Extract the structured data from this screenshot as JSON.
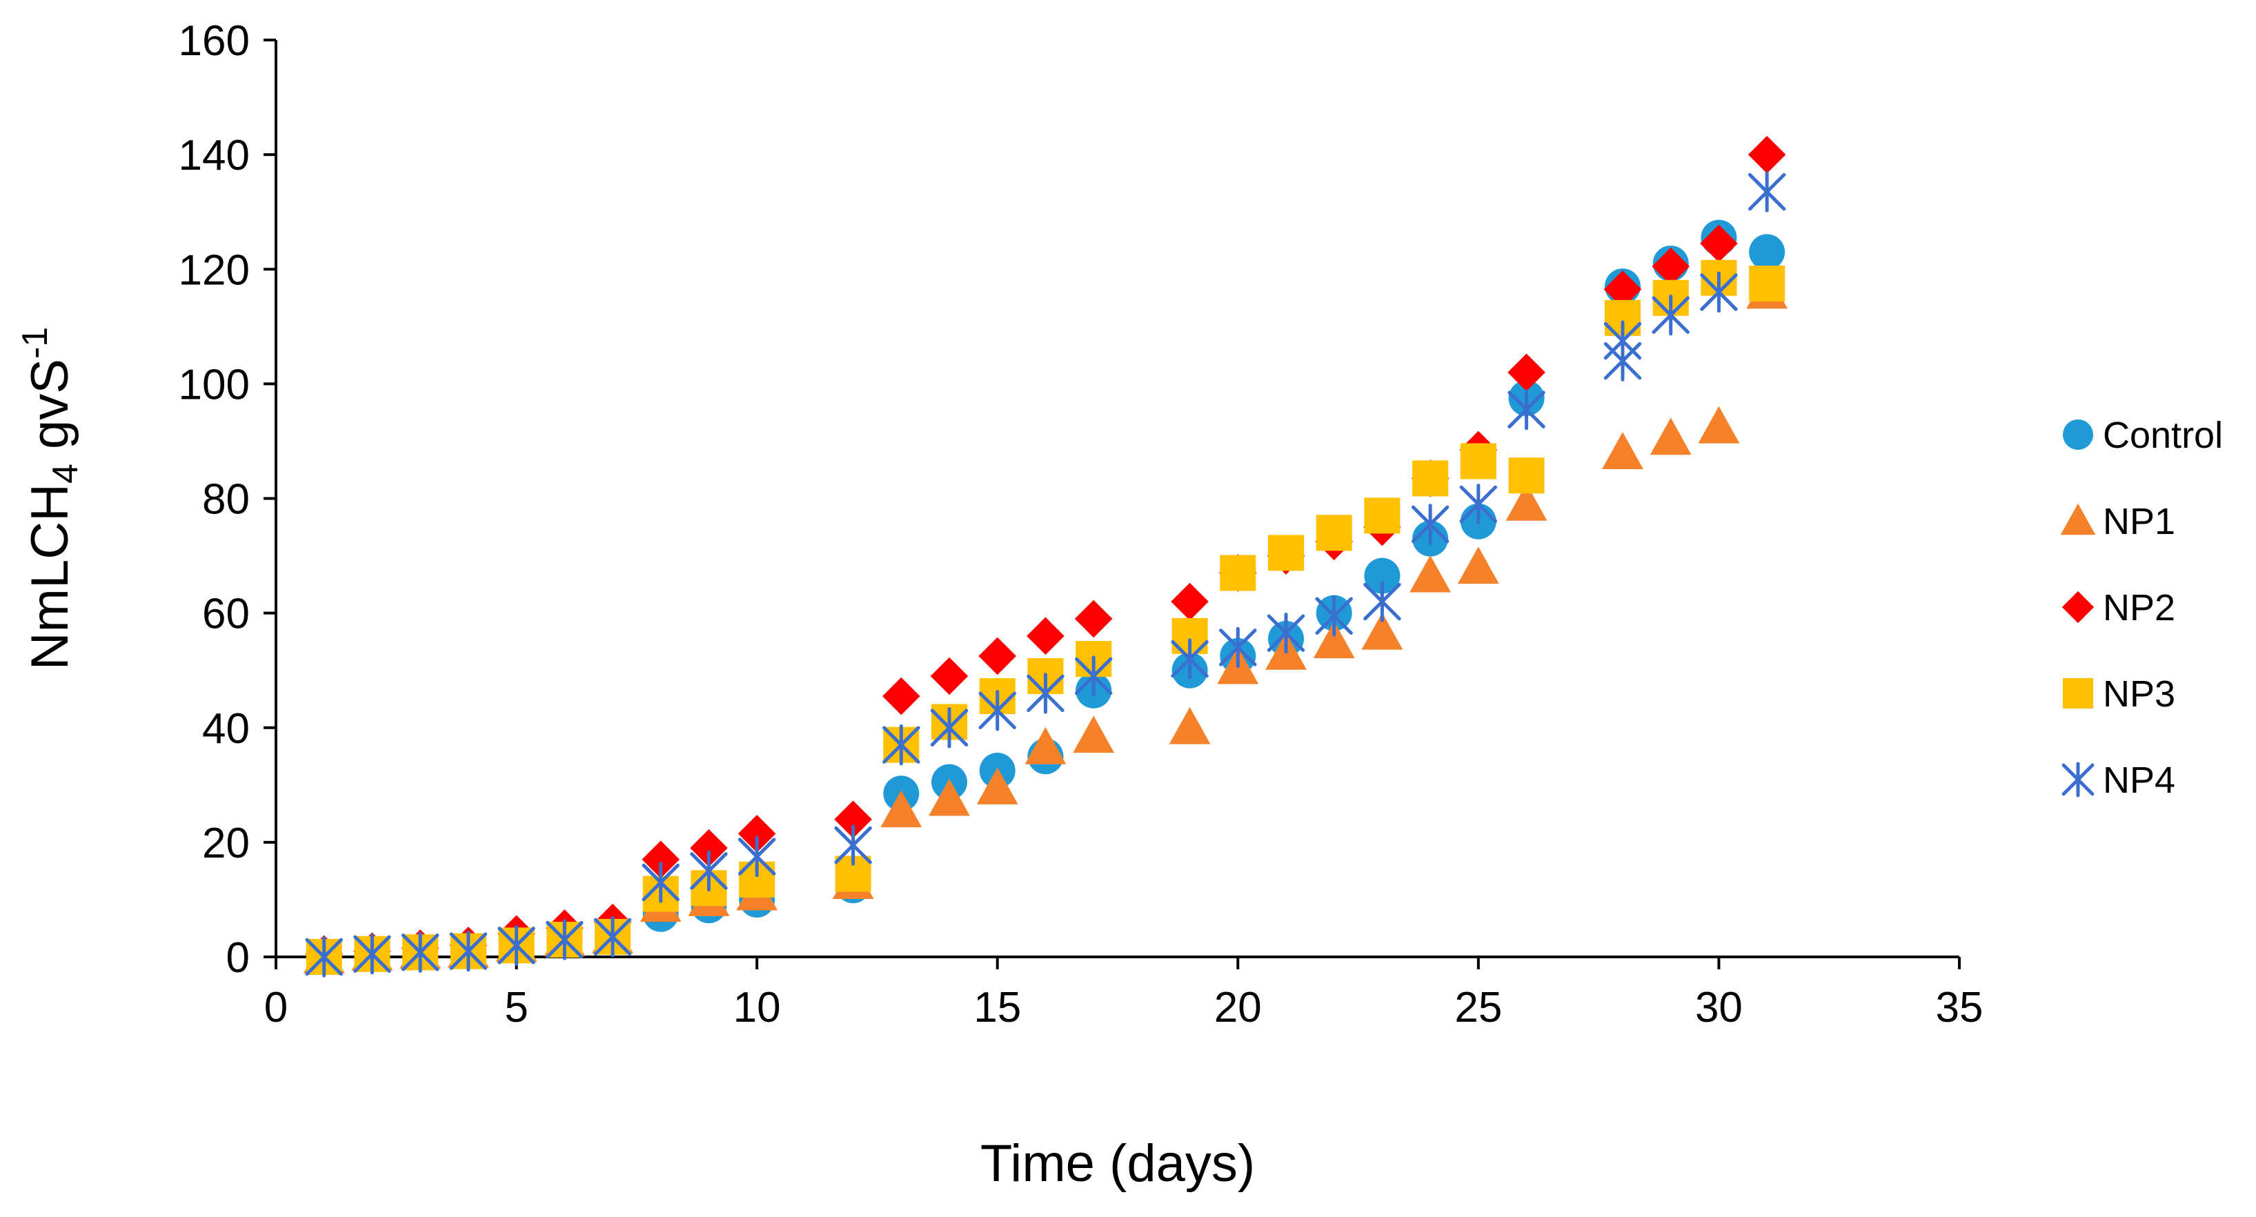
{
  "chart_data": {
    "type": "scatter",
    "title": "",
    "xlabel": "Time (days)",
    "ylabel": {
      "base": "NmLCH",
      "sub": "4",
      "mid": " gvS",
      "sup": "-1"
    },
    "xlim": [
      0,
      35
    ],
    "ylim": [
      0,
      160
    ],
    "xticks": [
      0,
      5,
      10,
      15,
      20,
      25,
      30,
      35
    ],
    "yticks": [
      0,
      20,
      40,
      60,
      80,
      100,
      120,
      140,
      160
    ],
    "grid": false,
    "legend_position": "right",
    "series": [
      {
        "name": "Control",
        "marker": "circle",
        "color": "#1f9ad6",
        "points": [
          [
            1,
            0
          ],
          [
            2,
            0.5
          ],
          [
            3,
            0.8
          ],
          [
            4,
            1
          ],
          [
            5,
            2
          ],
          [
            6,
            3
          ],
          [
            7,
            3.5
          ],
          [
            8,
            7.5
          ],
          [
            9,
            9
          ],
          [
            10,
            10
          ],
          [
            12,
            12.5
          ],
          [
            13,
            28.5
          ],
          [
            14,
            30.5
          ],
          [
            15,
            32.5
          ],
          [
            16,
            35
          ],
          [
            17,
            46.5
          ],
          [
            19,
            50
          ],
          [
            20,
            52.5
          ],
          [
            21,
            55.5
          ],
          [
            22,
            60
          ],
          [
            23,
            66.5
          ],
          [
            24,
            73
          ],
          [
            25,
            76
          ],
          [
            26,
            97.5
          ],
          [
            28,
            117
          ],
          [
            29,
            121
          ],
          [
            30,
            125.5
          ],
          [
            31,
            123
          ]
        ]
      },
      {
        "name": "NP1",
        "marker": "triangle",
        "color": "#f5822a",
        "points": [
          [
            1,
            0
          ],
          [
            2,
            0.5
          ],
          [
            3,
            0.8
          ],
          [
            4,
            1
          ],
          [
            5,
            2
          ],
          [
            6,
            3
          ],
          [
            7,
            3.5
          ],
          [
            8,
            9
          ],
          [
            9,
            10
          ],
          [
            10,
            11
          ],
          [
            12,
            13
          ],
          [
            13,
            25.5
          ],
          [
            14,
            27.5
          ],
          [
            15,
            29.5
          ],
          [
            16,
            36.5
          ],
          [
            17,
            38.5
          ],
          [
            19,
            40
          ],
          [
            20,
            50.5
          ],
          [
            21,
            53
          ],
          [
            22,
            55
          ],
          [
            23,
            56.5
          ],
          [
            24,
            66.5
          ],
          [
            25,
            68
          ],
          [
            26,
            79
          ],
          [
            28,
            88
          ],
          [
            29,
            90.5
          ],
          [
            30,
            92.5
          ],
          [
            31,
            116
          ]
        ]
      },
      {
        "name": "NP2",
        "marker": "diamond",
        "color": "#ff0000",
        "points": [
          [
            1,
            0.5
          ],
          [
            2,
            1
          ],
          [
            3,
            1.5
          ],
          [
            4,
            2
          ],
          [
            5,
            4
          ],
          [
            6,
            5
          ],
          [
            7,
            6
          ],
          [
            8,
            17
          ],
          [
            9,
            19
          ],
          [
            10,
            21.5
          ],
          [
            12,
            24
          ],
          [
            13,
            45.5
          ],
          [
            14,
            49
          ],
          [
            15,
            52.5
          ],
          [
            16,
            56
          ],
          [
            17,
            59
          ],
          [
            19,
            62
          ],
          [
            20,
            67
          ],
          [
            21,
            70
          ],
          [
            22,
            72.5
          ],
          [
            23,
            75
          ],
          [
            24,
            83.5
          ],
          [
            25,
            88.5
          ],
          [
            26,
            102
          ],
          [
            28,
            116.5
          ],
          [
            29,
            120.5
          ],
          [
            30,
            124.5
          ],
          [
            31,
            140
          ]
        ]
      },
      {
        "name": "NP3",
        "marker": "square",
        "color": "#ffc000",
        "points": [
          [
            1,
            0
          ],
          [
            2,
            0.5
          ],
          [
            3,
            0.8
          ],
          [
            4,
            1
          ],
          [
            5,
            2
          ],
          [
            6,
            3
          ],
          [
            7,
            3.5
          ],
          [
            8,
            11
          ],
          [
            9,
            12
          ],
          [
            10,
            13.5
          ],
          [
            12,
            14.5
          ],
          [
            13,
            37
          ],
          [
            14,
            41
          ],
          [
            15,
            45.5
          ],
          [
            16,
            49
          ],
          [
            17,
            52
          ],
          [
            19,
            56
          ],
          [
            20,
            67
          ],
          [
            21,
            70.5
          ],
          [
            22,
            74
          ],
          [
            23,
            77
          ],
          [
            24,
            83.5
          ],
          [
            25,
            86.5
          ],
          [
            26,
            84
          ],
          [
            28,
            111.5
          ],
          [
            29,
            115
          ],
          [
            30,
            118.5
          ],
          [
            31,
            117.5
          ]
        ]
      },
      {
        "name": "NP4",
        "marker": "star",
        "color": "#3a6fd0",
        "points": [
          [
            1,
            0
          ],
          [
            2,
            0.5
          ],
          [
            3,
            0.8
          ],
          [
            4,
            1
          ],
          [
            5,
            2
          ],
          [
            6,
            3
          ],
          [
            7,
            3.5
          ],
          [
            8,
            13
          ],
          [
            9,
            15
          ],
          [
            10,
            17.5
          ],
          [
            12,
            19.5
          ],
          [
            13,
            37
          ],
          [
            14,
            40
          ],
          [
            15,
            43
          ],
          [
            16,
            46
          ],
          [
            17,
            49
          ],
          [
            19,
            52
          ],
          [
            20,
            54
          ],
          [
            21,
            56.5
          ],
          [
            22,
            59.5
          ],
          [
            23,
            62
          ],
          [
            24,
            75.5
          ],
          [
            25,
            79
          ],
          [
            26,
            95.5
          ],
          [
            28,
            107.5
          ],
          [
            28,
            104
          ],
          [
            29,
            112
          ],
          [
            30,
            116
          ],
          [
            31,
            133.5
          ]
        ]
      }
    ]
  }
}
